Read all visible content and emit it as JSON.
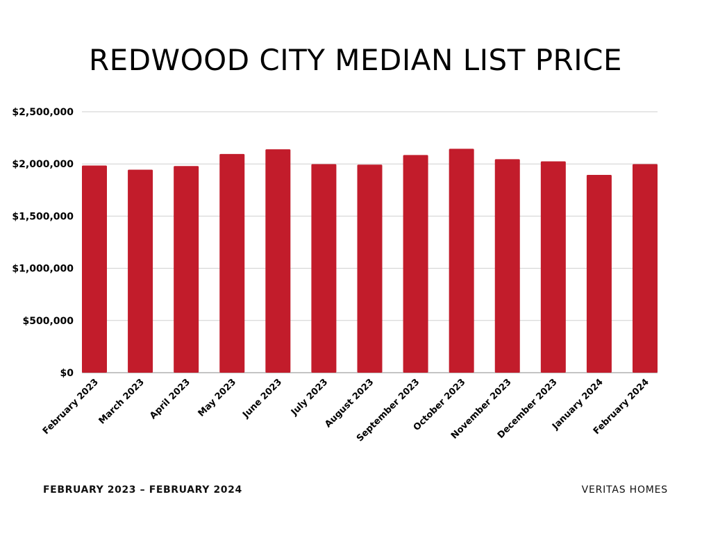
{
  "title": "REDWOOD CITY MEDIAN LIST PRICE",
  "footer": {
    "left": "FEBRUARY 2023 – FEBRUARY 2024",
    "right": "VERITAS HOMES"
  },
  "colors": {
    "bar": "#C21C2B",
    "grid": "#CFCFCF",
    "axis": "#888888"
  },
  "chart_data": {
    "type": "bar",
    "categories": [
      "February 2023",
      "March 2023",
      "April 2023",
      "May 2023",
      "June 2023",
      "July 2023",
      "August 2023",
      "September 2023",
      "October 2023",
      "November 2023",
      "December 2023",
      "January 2024",
      "February 2024"
    ],
    "values": [
      1985000,
      1945000,
      1980000,
      2095000,
      2140000,
      1998000,
      1993000,
      2085000,
      2145000,
      2045000,
      2025000,
      1895000,
      1998000
    ],
    "yticks": [
      0,
      500000,
      1000000,
      1500000,
      2000000,
      2500000
    ],
    "ytick_labels": [
      "$0",
      "$500,000",
      "$1,000,000",
      "$1,500,000",
      "$2,000,000",
      "$2,500,000"
    ],
    "ylim": [
      0,
      2500000
    ],
    "xlabel": "",
    "ylabel": "",
    "grid": true,
    "legend": false
  }
}
